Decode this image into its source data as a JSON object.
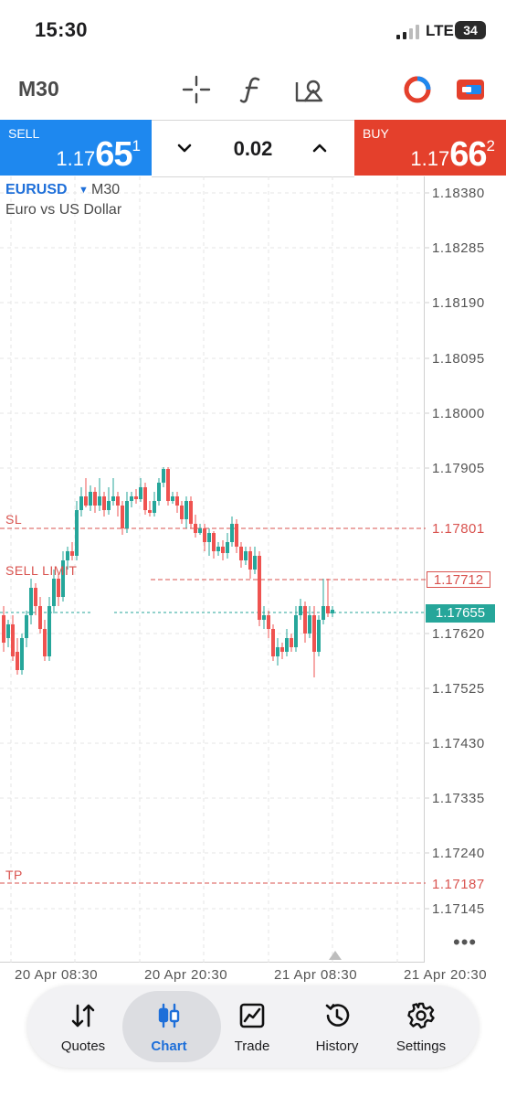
{
  "status_bar": {
    "time": "15:30",
    "network": "LTE",
    "battery": "34"
  },
  "toolbar": {
    "timeframe": "M30",
    "tools": [
      "crosshair-icon",
      "function-icon",
      "objects-icon",
      "account-icon",
      "trade-toggle-icon"
    ]
  },
  "trade_panel": {
    "sell_label": "SELL",
    "sell_price_prefix": "1.17",
    "sell_price_big": "65",
    "sell_price_sup": "1",
    "buy_label": "BUY",
    "buy_price_prefix": "1.17",
    "buy_price_big": "66",
    "buy_price_sup": "2",
    "lot": "0.02",
    "colors": {
      "sell": "#1e88ef",
      "buy": "#e4402c"
    }
  },
  "chart": {
    "symbol": "EURUSD",
    "timeframe": "M30",
    "description": "Euro vs US Dollar",
    "price_ticks": [
      "1.18380",
      "1.18285",
      "1.18190",
      "1.18095",
      "1.18000",
      "1.17905",
      "1.17620",
      "1.17525",
      "1.17430",
      "1.17335",
      "1.17240",
      "1.17145"
    ],
    "levels": {
      "sl_label": "SL",
      "sl_price": "1.17801",
      "sell_limit_label": "SELL LIMIT",
      "sell_limit_price": "1.17712",
      "tp_label": "TP",
      "tp_price": "1.17187",
      "current_price": "1.17655"
    },
    "time_ticks": [
      "20 Apr 08:30",
      "20 Apr 20:30",
      "21 Apr 08:30",
      "21 Apr 20:30"
    ],
    "colors": {
      "up": "#26a69a",
      "down": "#ef5350",
      "level": "#d9534f"
    }
  },
  "tabs": [
    {
      "label": "Quotes",
      "icon": "quotes-icon"
    },
    {
      "label": "Chart",
      "icon": "chart-icon",
      "active": true
    },
    {
      "label": "Trade",
      "icon": "trade-icon"
    },
    {
      "label": "History",
      "icon": "history-icon"
    },
    {
      "label": "Settings",
      "icon": "settings-icon"
    }
  ]
}
